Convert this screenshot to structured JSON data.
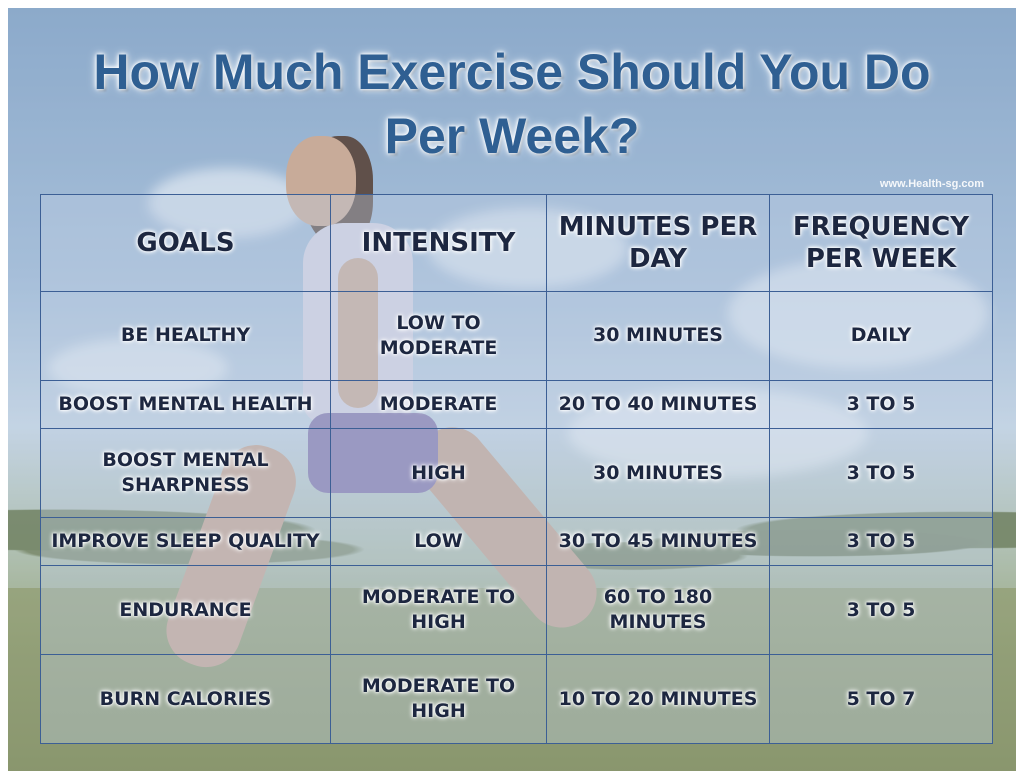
{
  "title": {
    "line1": "How Much Exercise Should You Do",
    "line2": "Per Week?"
  },
  "watermark": "www.Health-sg.com",
  "table": {
    "headers": [
      "Goals",
      "Intensity",
      "Minutes per day",
      "Frequency per week"
    ],
    "rows": [
      [
        "Be healthy",
        "Low to moderate",
        "30 minutes",
        "Daily"
      ],
      [
        "Boost mental health",
        "Moderate",
        "20 to 40 minutes",
        "3 to 5"
      ],
      [
        "Boost mental sharpness",
        "High",
        "30 minutes",
        "3 to 5"
      ],
      [
        "Improve sleep quality",
        "Low",
        "30 to 45 minutes",
        "3 to 5"
      ],
      [
        "Endurance",
        "Moderate to high",
        "60 to 180 minutes",
        "3 to 5"
      ],
      [
        "Burn calories",
        "Moderate to high",
        "10 to 20 minutes",
        "5 to 7"
      ]
    ]
  },
  "colors": {
    "title": "#2f5f92",
    "grid_lines": "#3c5f95",
    "cell_text": "#1d2740"
  }
}
